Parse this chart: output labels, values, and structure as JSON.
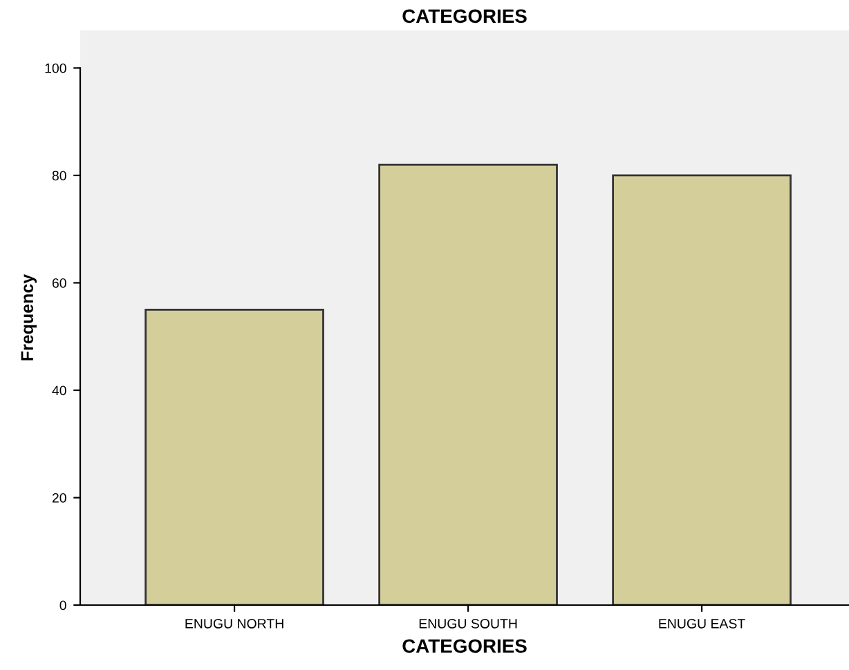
{
  "chart_data": {
    "type": "bar",
    "title": "CATEGORIES",
    "xlabel": "CATEGORIES",
    "ylabel": "Frequency",
    "categories": [
      "ENUGU NORTH",
      "ENUGU SOUTH",
      "ENUGU EAST"
    ],
    "values": [
      55,
      82,
      80
    ],
    "color": "#d3ce9a",
    "ylim": [
      0,
      107
    ],
    "yticks": [
      0,
      20,
      40,
      60,
      80,
      100
    ],
    "grid": false,
    "legend": false
  }
}
